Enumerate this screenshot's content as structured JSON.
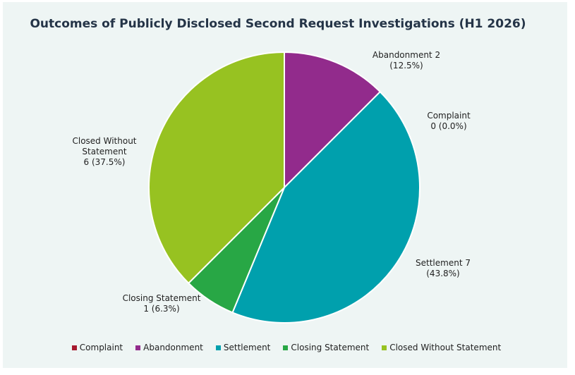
{
  "chart_data": {
    "type": "pie",
    "title": "Outcomes of Publicly Disclosed Second Request Investigations (H1 2026)",
    "start_angle_deg": 0,
    "direction": "clockwise",
    "slices": [
      {
        "name": "Abandonment",
        "value": 2,
        "percent": 12.5,
        "color": "#922b8c",
        "label_lines": [
          "Abandonment 2",
          "(12.5%)"
        ]
      },
      {
        "name": "Complaint",
        "value": 0,
        "percent": 0.0,
        "color": "#a6192e",
        "label_lines": [
          "Complaint",
          "0 (0.0%)"
        ]
      },
      {
        "name": "Settlement",
        "value": 7,
        "percent": 43.8,
        "color": "#00a0ad",
        "label_lines": [
          "Settlement 7",
          "(43.8%)"
        ]
      },
      {
        "name": "Closing Statement",
        "value": 1,
        "percent": 6.3,
        "color": "#28a745",
        "label_lines": [
          "Closing Statement",
          "1 (6.3%)"
        ]
      },
      {
        "name": "Closed Without Statement",
        "value": 6,
        "percent": 37.5,
        "color": "#97c221",
        "label_lines": [
          "Closed Without",
          "Statement",
          "6 (37.5%)"
        ]
      }
    ],
    "legend": {
      "placement": "bottom",
      "entries": [
        {
          "label": "Complaint",
          "color": "#a6192e"
        },
        {
          "label": "Abandonment",
          "color": "#922b8c"
        },
        {
          "label": "Settlement",
          "color": "#00a0ad"
        },
        {
          "label": "Closing Statement",
          "color": "#28a745"
        },
        {
          "label": "Closed Without Statement",
          "color": "#97c221"
        }
      ]
    }
  }
}
